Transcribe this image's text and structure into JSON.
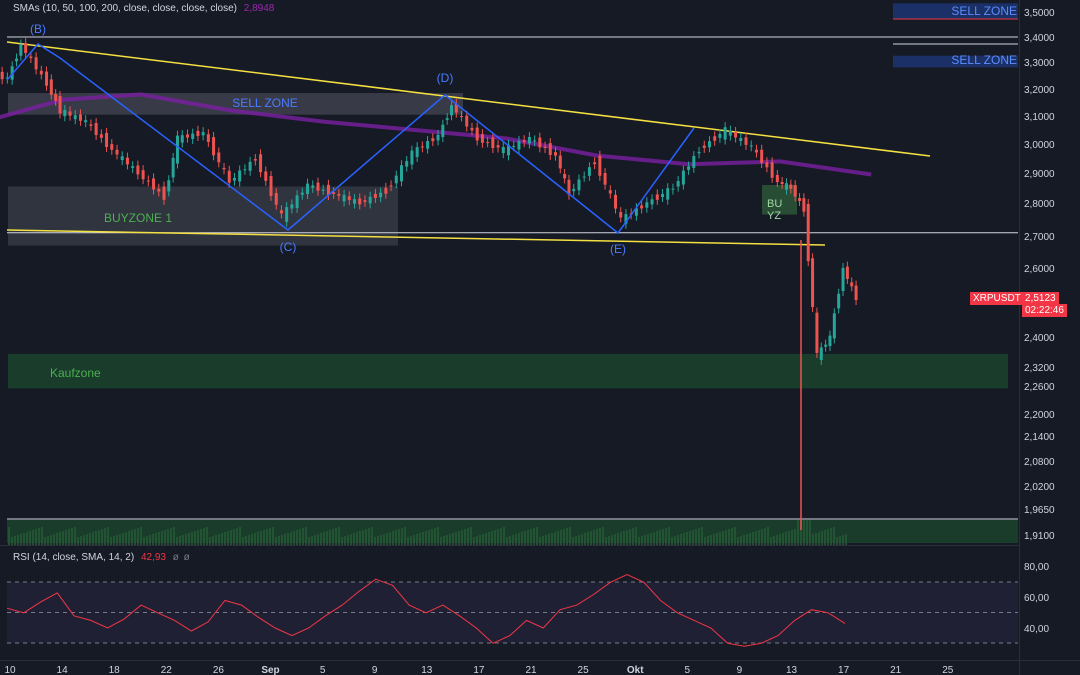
{
  "chart_data": {
    "type": "candlestick",
    "symbol": "XRPUSDT",
    "last_price": "2,5123",
    "countdown": "02:22:46",
    "indicator_label": "SMAs (10, 50, 100, 200, close, close, close, close)",
    "indicator_value": "2,8948",
    "rsi_label": "RSI (14, close, SMA, 14, 2)",
    "rsi_value": "42,93",
    "rsi_symbol": "ø",
    "price_ticks": [
      "3,5000",
      "3,4000",
      "3,3000",
      "3,2000",
      "3,1000",
      "3,0000",
      "2,9000",
      "2,8000",
      "2,7000",
      "2,6000",
      "2,5000",
      "2,4000",
      "2,3200",
      "2,2600",
      "2,2000",
      "2,1400",
      "2,0800",
      "2,0200",
      "1,9650",
      "1,9100"
    ],
    "rsi_ticks": [
      "80,00",
      "60,00",
      "40,00"
    ],
    "date_ticks": [
      "10",
      "14",
      "18",
      "22",
      "26",
      "Sep",
      "5",
      "9",
      "13",
      "17",
      "21",
      "25",
      "Okt",
      "5",
      "9",
      "13",
      "17",
      "21",
      "25"
    ],
    "ylim": [
      1.91,
      3.5
    ],
    "horizontal_levels": [
      3.4,
      2.71
    ],
    "trendlines": [
      {
        "from": [
          "Aug 10",
          3.4
        ],
        "to": [
          "Okt 15",
          2.965
        ]
      },
      {
        "from": [
          "Aug 10",
          2.71
        ],
        "to": [
          "Okt 10",
          2.675
        ]
      }
    ],
    "zones": [
      {
        "label": "SELL ZONE",
        "low": 3.105,
        "high": 3.185,
        "color": "#787b86"
      },
      {
        "label": "BUYZONE 1",
        "low": 2.67,
        "high": 2.855,
        "color": "#787b86"
      },
      {
        "label": "Kaufzone",
        "low": 2.255,
        "high": 2.355,
        "color": "#1e4d2b"
      },
      {
        "label": "SELL ZONE",
        "low": 3.47,
        "high": 3.535,
        "color": "#2962ff"
      },
      {
        "label": "SELL ZONE",
        "low": 3.28,
        "high": 3.325,
        "color": "#2962ff"
      },
      {
        "label": "BU YZ",
        "low": 2.765,
        "high": 2.86,
        "color": "#4caf50"
      }
    ],
    "wave_points": [
      {
        "label": "(B)",
        "date": "Aug 11",
        "price": 3.37
      },
      {
        "label": "(C)",
        "date": "Aug 31",
        "price": 2.72
      },
      {
        "label": "(D)",
        "date": "Sep 13",
        "price": 3.18
      },
      {
        "label": "(E)",
        "date": "Sep 26",
        "price": 2.72
      }
    ],
    "price_series": [
      [
        "Aug 8",
        3.26
      ],
      [
        "Aug 10",
        3.24
      ],
      [
        "Aug 11",
        3.37
      ],
      [
        "Aug 13",
        3.22
      ],
      [
        "Aug 14",
        3.12
      ],
      [
        "Aug 16",
        3.08
      ],
      [
        "Aug 18",
        2.98
      ],
      [
        "Aug 20",
        2.9
      ],
      [
        "Aug 22",
        2.82
      ],
      [
        "Aug 23",
        3.02
      ],
      [
        "Aug 25",
        3.04
      ],
      [
        "Aug 27",
        2.87
      ],
      [
        "Aug 29",
        2.95
      ],
      [
        "Aug 31",
        2.76
      ],
      [
        "Sep 2",
        2.86
      ],
      [
        "Sep 4",
        2.83
      ],
      [
        "Sep 6",
        2.8
      ],
      [
        "Sep 8",
        2.84
      ],
      [
        "Sep 10",
        2.97
      ],
      [
        "Sep 12",
        3.03
      ],
      [
        "Sep 13",
        3.14
      ],
      [
        "Sep 15",
        3.02
      ],
      [
        "Sep 17",
        2.98
      ],
      [
        "Sep 19",
        3.02
      ],
      [
        "Sep 21",
        2.96
      ],
      [
        "Sep 22",
        2.83
      ],
      [
        "Sep 24",
        2.94
      ],
      [
        "Sep 26",
        2.75
      ],
      [
        "Sep 28",
        2.8
      ],
      [
        "Sep 30",
        2.85
      ],
      [
        "Okt 2",
        2.98
      ],
      [
        "Okt 4",
        3.05
      ],
      [
        "Okt 6",
        2.99
      ],
      [
        "Okt 8",
        2.87
      ],
      [
        "Okt 9",
        2.85
      ],
      [
        "Okt 10",
        2.78
      ],
      [
        "Okt 11",
        2.35
      ],
      [
        "Okt 12",
        2.4
      ],
      [
        "Okt 13",
        2.6
      ],
      [
        "Okt 14",
        2.51
      ]
    ],
    "sma200": [
      [
        "Aug 8",
        3.08
      ],
      [
        "Aug 14",
        3.16
      ],
      [
        "Aug 20",
        3.18
      ],
      [
        "Aug 27",
        3.12
      ],
      [
        "Sep 3",
        3.08
      ],
      [
        "Sep 10",
        3.05
      ],
      [
        "Sep 17",
        3.02
      ],
      [
        "Sep 24",
        2.96
      ],
      [
        "Okt 1",
        2.93
      ],
      [
        "Okt 8",
        2.94
      ],
      [
        "Okt 15",
        2.895
      ]
    ],
    "rsi_series": [
      53,
      50,
      57,
      63,
      48,
      45,
      40,
      46,
      55,
      50,
      45,
      38,
      44,
      58,
      55,
      47,
      40,
      35,
      40,
      48,
      55,
      64,
      72,
      68,
      55,
      50,
      55,
      48,
      40,
      30,
      35,
      45,
      40,
      52,
      55,
      62,
      70,
      75,
      70,
      58,
      50,
      45,
      40,
      30,
      28,
      30,
      35,
      45,
      52,
      50,
      43
    ]
  }
}
